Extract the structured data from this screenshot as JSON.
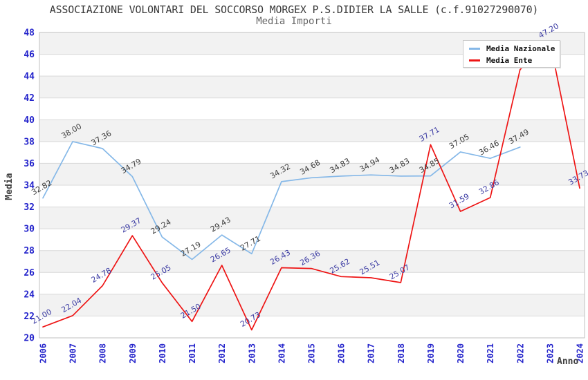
{
  "title": "ASSOCIAZIONE VOLONTARI DEL SOCCORSO MORGEX P.S.DIDIER LA SALLE (c.f.91027290070)",
  "subtitle": "Media Importi",
  "axes": {
    "x_label": "Anno",
    "y_label": "Media",
    "y_min": 20,
    "y_max": 48,
    "y_step": 2,
    "y_ticks": [
      20,
      22,
      24,
      26,
      28,
      30,
      32,
      34,
      36,
      38,
      40,
      42,
      44,
      46,
      48
    ],
    "years": [
      2006,
      2007,
      2008,
      2009,
      2010,
      2011,
      2012,
      2013,
      2014,
      2015,
      2016,
      2017,
      2018,
      2019,
      2020,
      2021,
      2022,
      2023,
      2024
    ]
  },
  "colors": {
    "background": "#ffffff",
    "band_gray": "#f2f2f2",
    "gridline": "#d9d9d9",
    "frame": "#c0c0c0",
    "tick_text": "#2323cb",
    "title_text": "#3a3a3a",
    "subtitle_text": "#666666",
    "axis_title_text": "#404040"
  },
  "legend": {
    "position": "top-right"
  },
  "chart_data": {
    "type": "line",
    "title": "ASSOCIAZIONE VOLONTARI DEL SOCCORSO MORGEX P.S.DIDIER LA SALLE (c.f.91027290070)",
    "subtitle": "Media Importi",
    "xlabel": "Anno",
    "ylabel": "Media",
    "ylim": [
      20,
      48
    ],
    "grid": "horizontal-bands",
    "legend_position": "top-right",
    "categories": [
      2006,
      2007,
      2008,
      2009,
      2010,
      2011,
      2012,
      2013,
      2014,
      2015,
      2016,
      2017,
      2018,
      2019,
      2020,
      2021,
      2022,
      2023,
      2024
    ],
    "series": [
      {
        "name": "Media Nazionale",
        "color": "#85b8e8",
        "label_color": "#3c3c3c",
        "x": [
          2006,
          2007,
          2008,
          2009,
          2010,
          2011,
          2012,
          2013,
          2014,
          2015,
          2016,
          2017,
          2018,
          2019,
          2020,
          2021,
          2022
        ],
        "values": [
          32.82,
          38.0,
          37.36,
          34.79,
          29.24,
          27.19,
          29.43,
          27.71,
          34.32,
          34.68,
          34.83,
          34.94,
          34.83,
          34.85,
          37.05,
          36.46,
          37.49
        ],
        "labels": [
          "32.82",
          "38.00",
          "37.36",
          "34.79",
          "29.24",
          "27.19",
          "29.43",
          "27.71",
          "34.32",
          "34.68",
          "34.83",
          "34.94",
          "34.83",
          "34.85",
          "37.05",
          "36.46",
          "37.49"
        ]
      },
      {
        "name": "Media Ente",
        "color": "#ee1414",
        "label_color": "#3b3ba3",
        "x": [
          2006,
          2007,
          2008,
          2009,
          2010,
          2011,
          2012,
          2013,
          2014,
          2015,
          2016,
          2017,
          2018,
          2019,
          2020,
          2021,
          2022,
          2023,
          2024
        ],
        "values": [
          21.0,
          22.04,
          24.78,
          29.37,
          25.05,
          21.5,
          26.65,
          20.73,
          26.43,
          26.36,
          25.62,
          25.51,
          25.07,
          37.71,
          31.59,
          32.86,
          44.6,
          47.2,
          33.73
        ],
        "labels": [
          "21.00",
          "22.04",
          "24.78",
          "29.37",
          "25.05",
          "21.50",
          "26.65",
          "20.73",
          "26.43",
          "26.36",
          "25.62",
          "25.51",
          "25.07",
          "37.71",
          "31.59",
          "32.86",
          "",
          "47.20",
          "33.73"
        ]
      }
    ]
  }
}
